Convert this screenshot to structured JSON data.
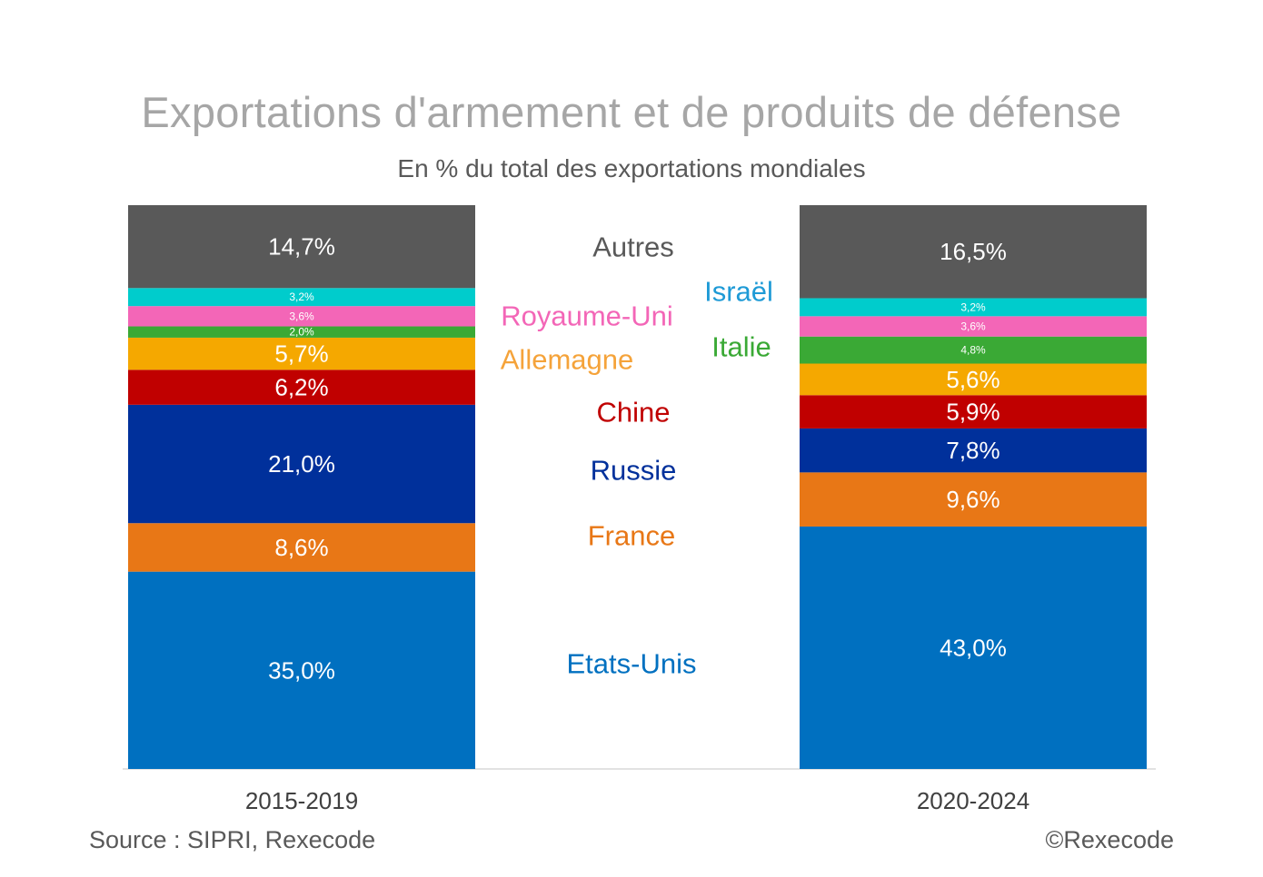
{
  "chart_data": {
    "type": "bar",
    "stacked": true,
    "title": "Exportations d'armement et de produits de défense",
    "subtitle": "En % du total des exportations mondiales",
    "categories": [
      "2015-2019",
      "2020-2024"
    ],
    "ylim": [
      0,
      100
    ],
    "series": [
      {
        "name": "Etats-Unis",
        "color": "#0070c0",
        "values": [
          35.0,
          43.0
        ],
        "labels": [
          "35,0%",
          "43,0%"
        ]
      },
      {
        "name": "France",
        "color": "#e87716",
        "values": [
          8.6,
          9.6
        ],
        "labels": [
          "8,6%",
          "9,6%"
        ]
      },
      {
        "name": "Russie",
        "color": "#00309b",
        "values": [
          21.0,
          7.8
        ],
        "labels": [
          "21,0%",
          "7,8%"
        ]
      },
      {
        "name": "Chine",
        "color": "#c00000",
        "values": [
          6.2,
          5.9
        ],
        "labels": [
          "6,2%",
          "5,9%"
        ]
      },
      {
        "name": "Allemagne",
        "color": "#f5a800",
        "values": [
          5.7,
          5.6
        ],
        "labels": [
          "5,7%",
          "5,6%"
        ]
      },
      {
        "name": "Italie",
        "color": "#3aa935",
        "values": [
          2.0,
          4.8
        ],
        "labels": [
          "2,0%",
          "4,8%"
        ]
      },
      {
        "name": "Royaume-Uni",
        "color": "#f366b7",
        "values": [
          3.6,
          3.6
        ],
        "labels": [
          "3,6%",
          "3,6%"
        ]
      },
      {
        "name": "Israël",
        "color": "#00cccc",
        "values": [
          3.2,
          3.2
        ],
        "labels": [
          "3,2%",
          "3,2%"
        ]
      },
      {
        "name": "Autres",
        "color": "#595959",
        "values": [
          14.7,
          16.5
        ],
        "labels": [
          "14,7%",
          "16,5%"
        ]
      }
    ],
    "legend_labels": [
      {
        "name": "Autres",
        "color": "#595959"
      },
      {
        "name": "Israël",
        "color": "#1e9ad6"
      },
      {
        "name": "Royaume-Uni",
        "color": "#f366b7"
      },
      {
        "name": "Italie",
        "color": "#3aa935"
      },
      {
        "name": "Allemagne",
        "color": "#f5a33a"
      },
      {
        "name": "Chine",
        "color": "#c00000"
      },
      {
        "name": "Russie",
        "color": "#00309b"
      },
      {
        "name": "France",
        "color": "#e87716"
      },
      {
        "name": "Etats-Unis",
        "color": "#0070c0"
      }
    ]
  },
  "footer": {
    "source": "Source : SIPRI, Rexecode",
    "copyright": "©Rexecode"
  }
}
